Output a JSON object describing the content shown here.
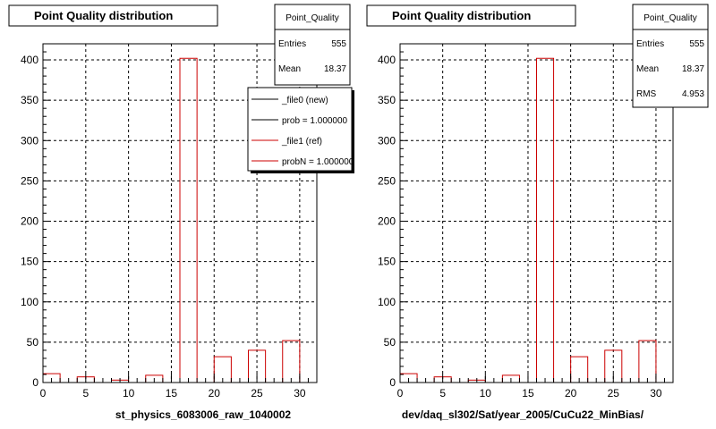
{
  "panels": [
    {
      "title": "Point Quality distribution",
      "xlabel": "st_physics_6083006_raw_1040002",
      "stats": {
        "name": "Point_Quality",
        "rows": [
          {
            "label": "Entries",
            "value": "555"
          },
          {
            "label": "Mean",
            "value": "18.37"
          }
        ]
      },
      "legend": [
        {
          "label": "_file0 (new)",
          "color": "#000000"
        },
        {
          "label": "prob = 1.000000",
          "color": "#000000"
        },
        {
          "label": "_file1 (ref)",
          "color": "#cc0000"
        },
        {
          "label": "probN = 1.000000",
          "color": "#cc0000"
        }
      ]
    },
    {
      "title": "Point Quality distribution",
      "xlabel": "dev/daq_sl302/Sat/year_2005/CuCu22_MinBias/",
      "stats": {
        "name": "Point_Quality",
        "rows": [
          {
            "label": "Entries",
            "value": "555"
          },
          {
            "label": "Mean",
            "value": "18.37"
          },
          {
            "label": "RMS",
            "value": "4.953"
          }
        ]
      },
      "legend": []
    }
  ],
  "chart_data": [
    {
      "type": "bar",
      "title": "Point Quality distribution",
      "xlabel": "st_physics_6083006_raw_1040002",
      "ylabel": "",
      "xlim": [
        0,
        32
      ],
      "ylim": [
        0,
        420
      ],
      "xticks": [
        "0",
        "5",
        "10",
        "15",
        "20",
        "25",
        "30"
      ],
      "yticks": [
        "0",
        "50",
        "100",
        "150",
        "200",
        "250",
        "300",
        "350",
        "400"
      ],
      "grid": true,
      "bars": [
        {
          "x": 1,
          "value": 11
        },
        {
          "x": 5,
          "value": 7
        },
        {
          "x": 9,
          "value": 3
        },
        {
          "x": 13,
          "value": 9
        },
        {
          "x": 17,
          "value": 402
        },
        {
          "x": 21,
          "value": 32
        },
        {
          "x": 25,
          "value": 40
        },
        {
          "x": 29,
          "value": 52
        }
      ],
      "series_color": "#cc0000"
    },
    {
      "type": "bar",
      "title": "Point Quality distribution",
      "xlabel": "dev/daq_sl302/Sat/year_2005/CuCu22_MinBias/",
      "ylabel": "",
      "xlim": [
        0,
        32
      ],
      "ylim": [
        0,
        420
      ],
      "xticks": [
        "0",
        "5",
        "10",
        "15",
        "20",
        "25",
        "30"
      ],
      "yticks": [
        "0",
        "50",
        "100",
        "150",
        "200",
        "250",
        "300",
        "350",
        "400"
      ],
      "grid": true,
      "bars": [
        {
          "x": 1,
          "value": 11
        },
        {
          "x": 5,
          "value": 7
        },
        {
          "x": 9,
          "value": 3
        },
        {
          "x": 13,
          "value": 9
        },
        {
          "x": 17,
          "value": 402
        },
        {
          "x": 21,
          "value": 32
        },
        {
          "x": 25,
          "value": 40
        },
        {
          "x": 29,
          "value": 52
        }
      ],
      "series_color": "#cc0000"
    }
  ]
}
